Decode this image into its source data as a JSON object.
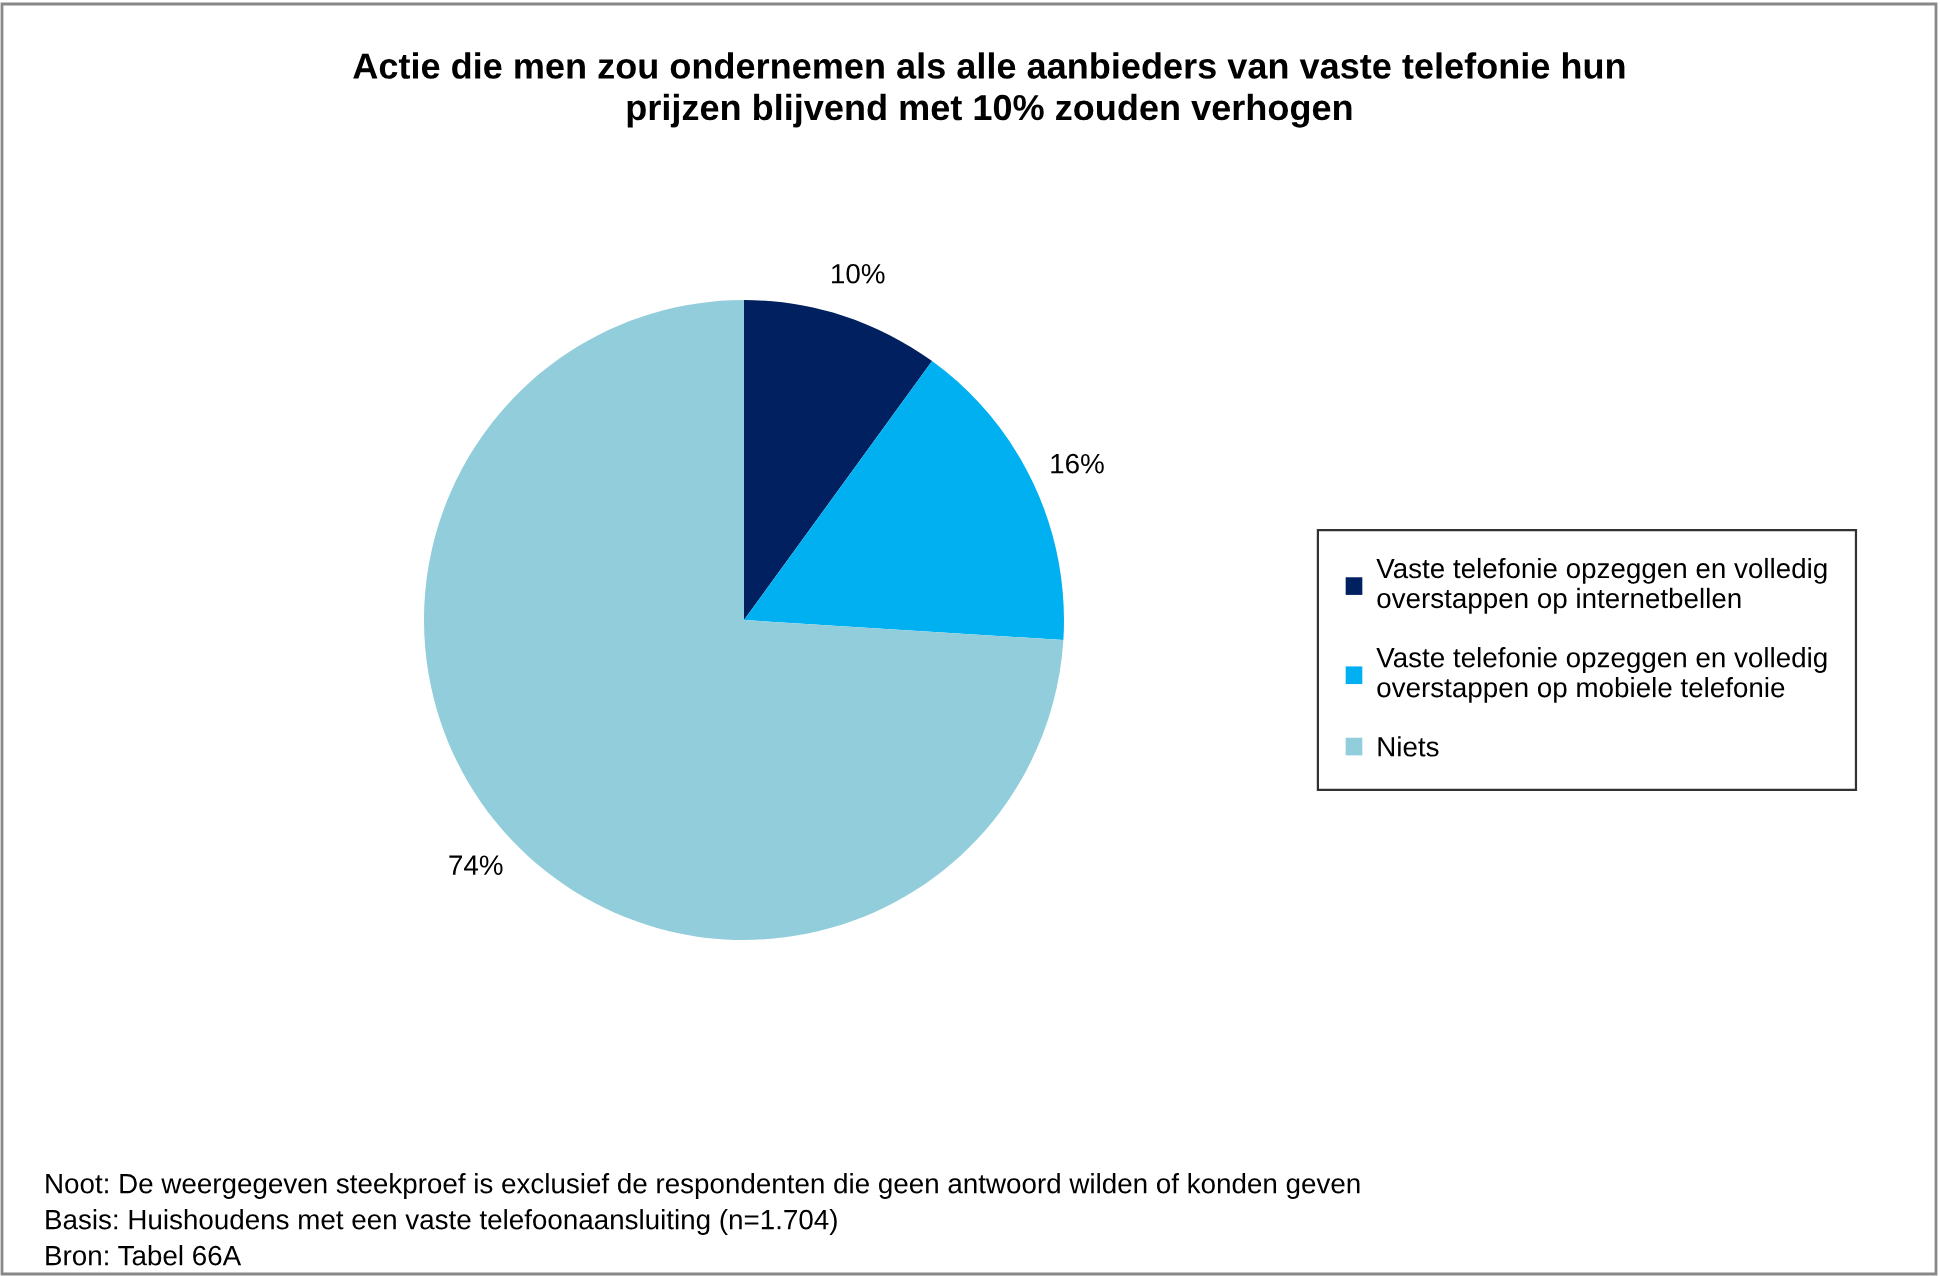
{
  "chart_data": {
    "type": "pie",
    "title": "Actie die men zou ondernemen als alle aanbieders van vaste telefonie hun prijzen blijvend met 10% zouden verhogen",
    "categories": [
      "Vaste telefonie opzeggen en volledig overstappen op internetbellen",
      "Vaste telefonie opzeggen en volledig overstappen op mobiele telefonie",
      "Niets"
    ],
    "values": [
      10,
      16,
      74
    ],
    "colors": [
      "#002060",
      "#00b0f0",
      "#92cddc"
    ],
    "value_labels": [
      "10%",
      "16%",
      "74%"
    ],
    "legend": "right",
    "annotations": [
      "Noot: De weergegeven steekproef is exclusief de respondenten die geen antwoord wilden of konden geven",
      "Basis: Huishoudens met een vaste telefoonaansluiting (n=1.704)",
      "Bron: Tabel 66A"
    ]
  }
}
